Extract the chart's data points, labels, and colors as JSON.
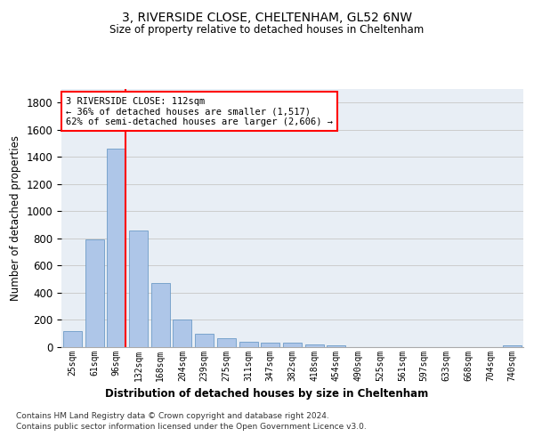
{
  "title1": "3, RIVERSIDE CLOSE, CHELTENHAM, GL52 6NW",
  "title2": "Size of property relative to detached houses in Cheltenham",
  "xlabel": "Distribution of detached houses by size in Cheltenham",
  "ylabel": "Number of detached properties",
  "footer1": "Contains HM Land Registry data © Crown copyright and database right 2024.",
  "footer2": "Contains public sector information licensed under the Open Government Licence v3.0.",
  "categories": [
    "25sqm",
    "61sqm",
    "96sqm",
    "132sqm",
    "168sqm",
    "204sqm",
    "239sqm",
    "275sqm",
    "311sqm",
    "347sqm",
    "382sqm",
    "418sqm",
    "454sqm",
    "490sqm",
    "525sqm",
    "561sqm",
    "597sqm",
    "633sqm",
    "668sqm",
    "704sqm",
    "740sqm"
  ],
  "values": [
    120,
    795,
    1460,
    860,
    470,
    200,
    100,
    65,
    40,
    35,
    30,
    20,
    10,
    0,
    0,
    0,
    0,
    0,
    0,
    0,
    10
  ],
  "bar_color": "#aec6e8",
  "bar_edgecolor": "#5a8fc0",
  "annotation_text1": "3 RIVERSIDE CLOSE: 112sqm",
  "annotation_text2": "← 36% of detached houses are smaller (1,517)",
  "annotation_text3": "62% of semi-detached houses are larger (2,606) →",
  "annotation_box_color": "white",
  "annotation_box_edgecolor": "red",
  "vline_x": 2.43,
  "vline_color": "red",
  "ylim": [
    0,
    1900
  ],
  "yticks": [
    0,
    200,
    400,
    600,
    800,
    1000,
    1200,
    1400,
    1600,
    1800
  ],
  "grid_color": "#cccccc",
  "bg_color": "#e8eef5",
  "fig_bg_color": "white"
}
